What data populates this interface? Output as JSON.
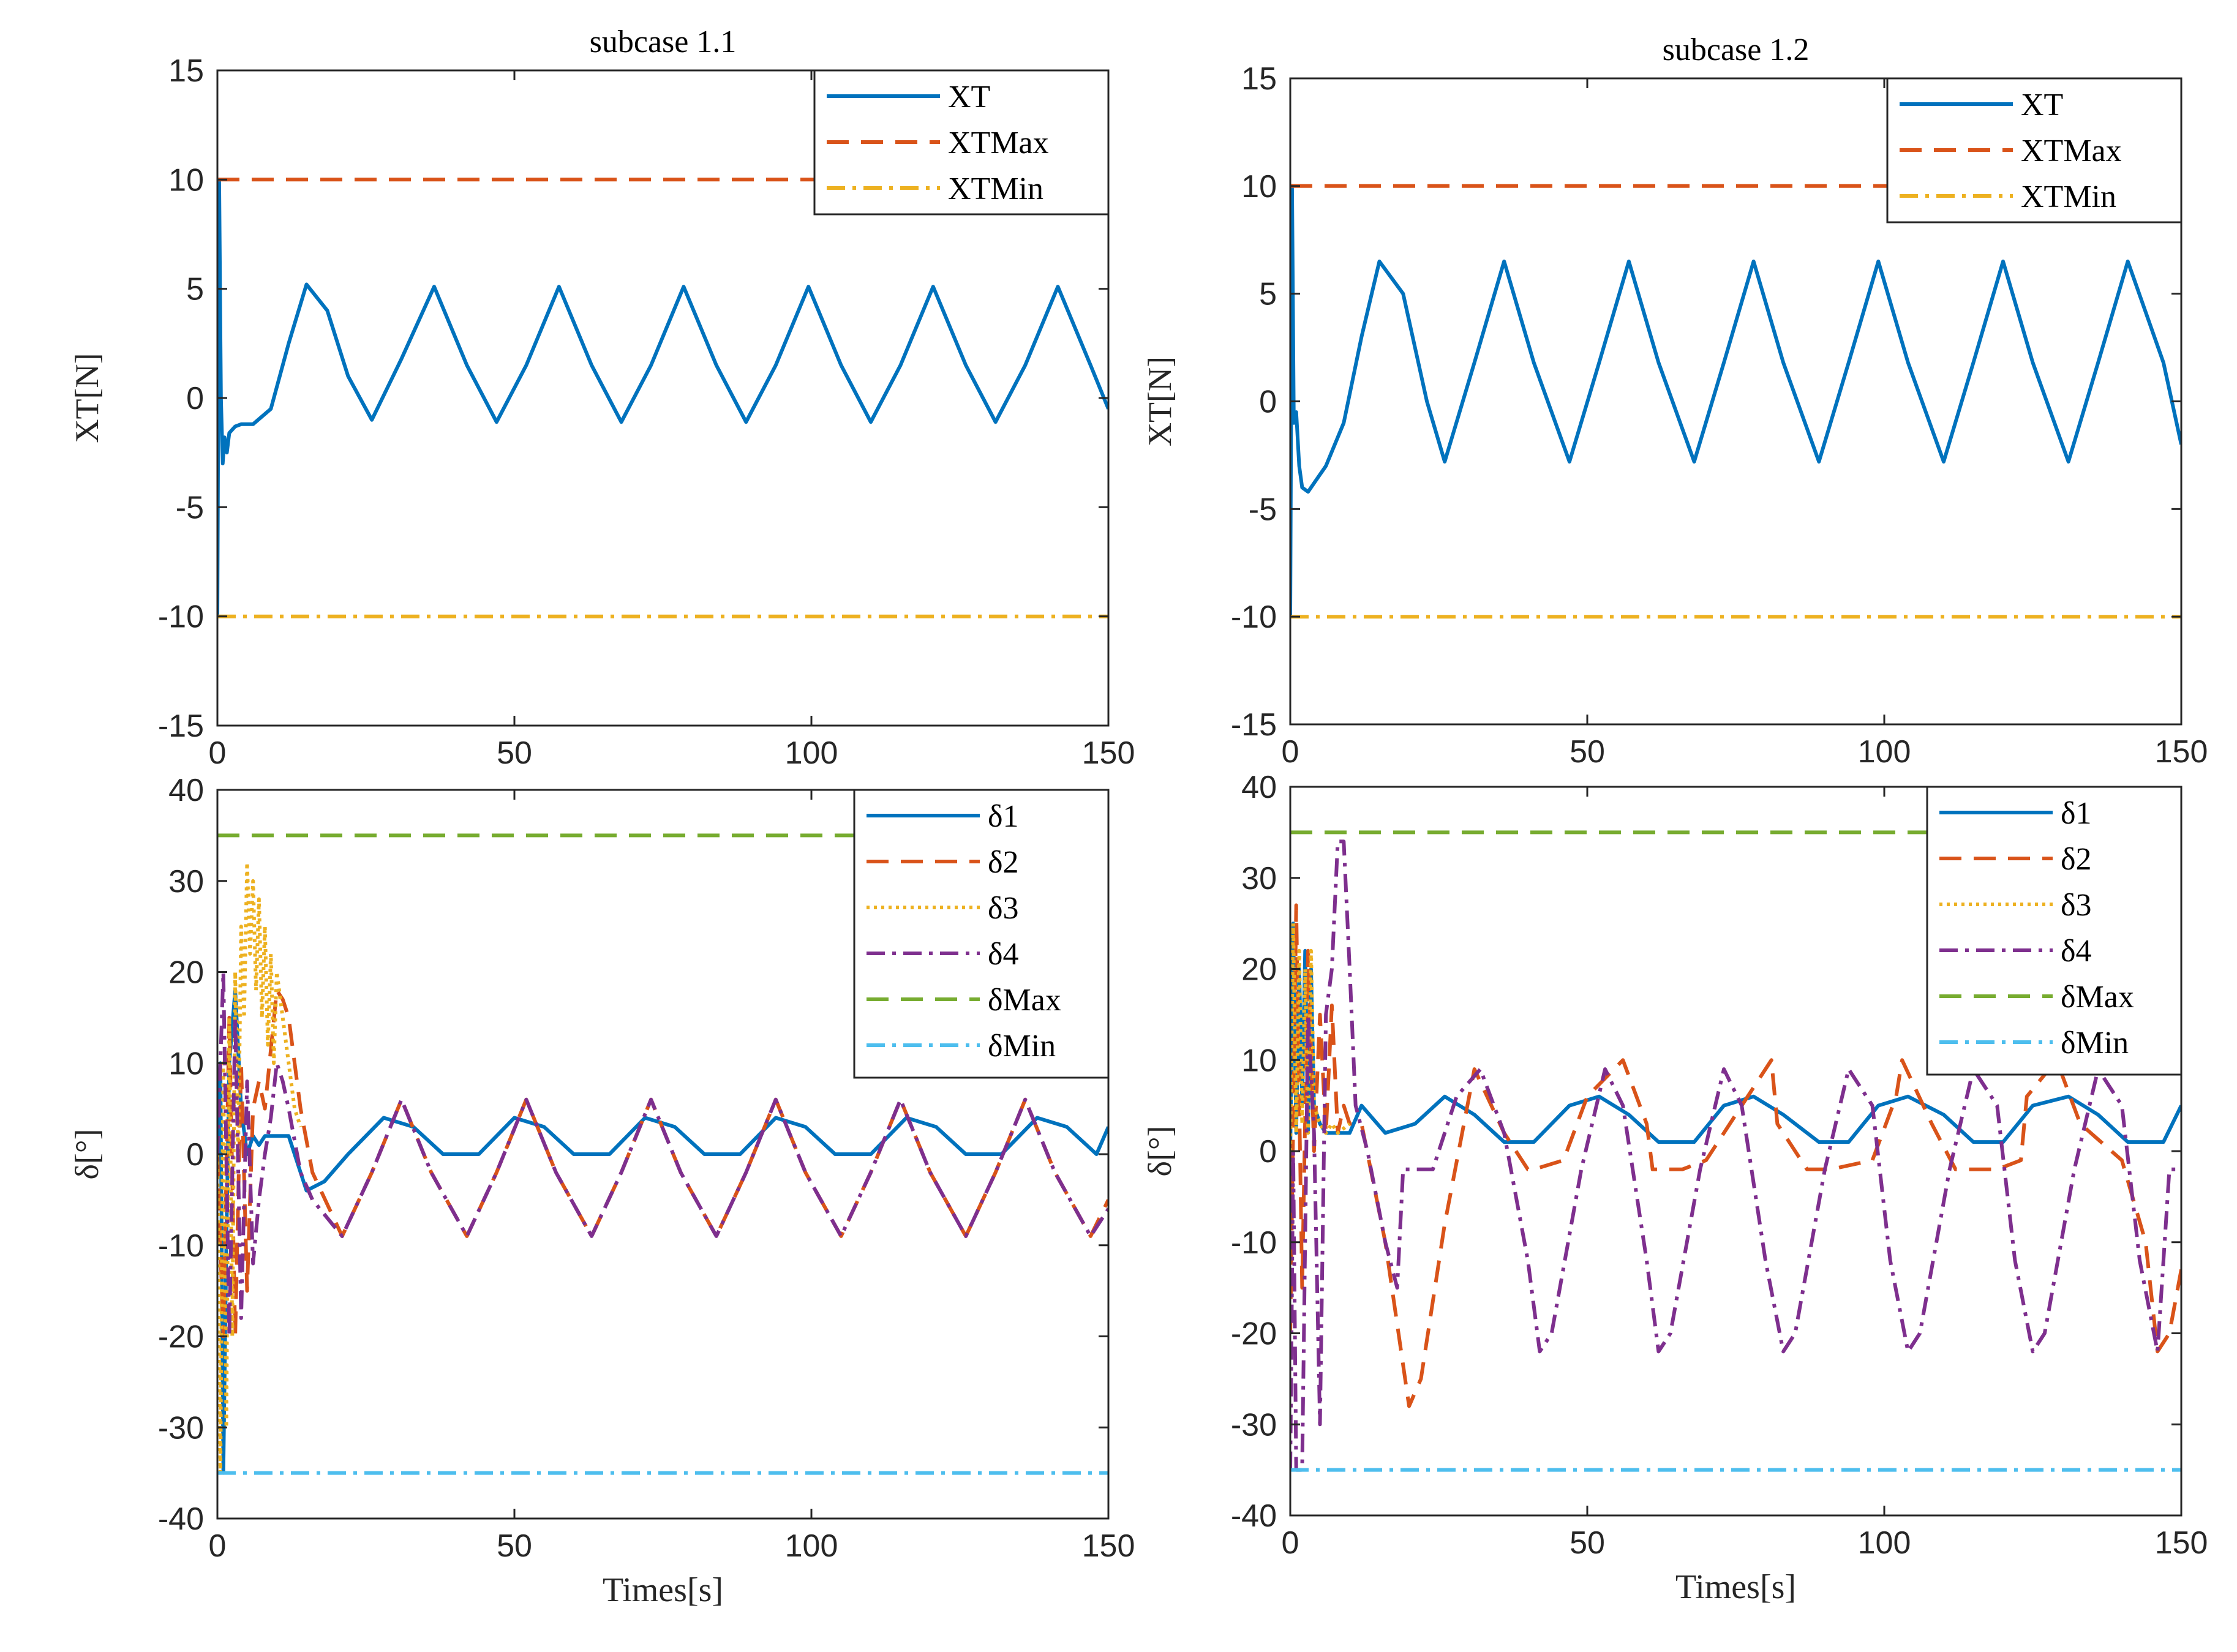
{
  "chart_data": [
    {
      "type": "line",
      "title": "subcase 1.1",
      "xlabel": "",
      "ylabel": "XT[N]",
      "xlim": [
        0,
        150
      ],
      "ylim": [
        -15,
        15
      ],
      "xticks": [
        "0",
        "50",
        "100",
        "150"
      ],
      "yticks": [
        "15",
        "10",
        "5",
        "0",
        "-5",
        "-10",
        "-15"
      ],
      "legend_position": "top-right",
      "series": [
        {
          "name": "XT",
          "color": "#0072BD",
          "style": "solid",
          "x": [
            0,
            0.3,
            0.6,
            0.9,
            1.2,
            1.6,
            2,
            3,
            4,
            6,
            9,
            12,
            15,
            18.5,
            22,
            26,
            31,
            36.5,
            42,
            47,
            52,
            57.5,
            63,
            68,
            73,
            78.5,
            84,
            89,
            94,
            99.5,
            105,
            110,
            115,
            120.5,
            126,
            131,
            136,
            141.5,
            147,
            150
          ],
          "values": [
            -10,
            10,
            0,
            -3,
            -1.8,
            -2.5,
            -1.6,
            -1.3,
            -1.2,
            -1.2,
            -0.5,
            2.5,
            5.2,
            4,
            1,
            -1,
            1.8,
            5.1,
            1.5,
            -1.1,
            1.5,
            5.1,
            1.5,
            -1.1,
            1.5,
            5.1,
            1.5,
            -1.1,
            1.5,
            5.1,
            1.5,
            -1.1,
            1.5,
            5.1,
            1.5,
            -1.1,
            1.5,
            5.1,
            1.5,
            -0.5
          ]
        },
        {
          "name": "XTMax",
          "color": "#D95319",
          "style": "dashed",
          "x": [
            0,
            150
          ],
          "values": [
            10,
            10
          ]
        },
        {
          "name": "XTMin",
          "color": "#EDB120",
          "style": "dashdot",
          "x": [
            0,
            150
          ],
          "values": [
            -10,
            -10
          ]
        }
      ]
    },
    {
      "type": "line",
      "title": "subcase 1.2",
      "xlabel": "",
      "ylabel": "XT[N]",
      "xlim": [
        0,
        150
      ],
      "ylim": [
        -15,
        15
      ],
      "xticks": [
        "0",
        "50",
        "100",
        "150"
      ],
      "yticks": [
        "15",
        "10",
        "5",
        "0",
        "-5",
        "-10",
        "-15"
      ],
      "legend_position": "top-right",
      "series": [
        {
          "name": "XT",
          "color": "#0072BD",
          "style": "solid",
          "x": [
            0,
            0.3,
            0.6,
            1.0,
            1.5,
            2,
            3,
            4,
            6,
            9,
            12,
            15,
            19,
            23,
            26,
            31,
            36,
            41,
            47,
            52,
            57,
            62,
            68,
            73,
            78,
            83,
            89,
            94,
            99,
            104,
            110,
            115,
            120,
            125,
            131,
            136,
            141,
            147,
            150
          ],
          "values": [
            -10,
            10,
            -1,
            -0.5,
            -3,
            -4,
            -4.2,
            -3.8,
            -3,
            -1,
            3,
            6.5,
            5,
            0,
            -2.8,
            1.8,
            6.5,
            1.8,
            -2.8,
            1.8,
            6.5,
            1.8,
            -2.8,
            1.8,
            6.5,
            1.8,
            -2.8,
            1.8,
            6.5,
            1.8,
            -2.8,
            1.8,
            6.5,
            1.8,
            -2.8,
            1.8,
            6.5,
            1.8,
            -2
          ]
        },
        {
          "name": "XTMax",
          "color": "#D95319",
          "style": "dashed",
          "x": [
            0,
            150
          ],
          "values": [
            10,
            10
          ]
        },
        {
          "name": "XTMin",
          "color": "#EDB120",
          "style": "dashdot",
          "x": [
            0,
            150
          ],
          "values": [
            -10,
            -10
          ]
        }
      ]
    },
    {
      "type": "line",
      "title": "",
      "xlabel": "Times[s]",
      "ylabel": "δ[°]",
      "xlim": [
        0,
        150
      ],
      "ylim": [
        -40,
        40
      ],
      "xticks": [
        "0",
        "50",
        "100",
        "150"
      ],
      "yticks": [
        "40",
        "30",
        "20",
        "10",
        "0",
        "-10",
        "-20",
        "-30",
        "-40"
      ],
      "legend_position": "top-right",
      "series": [
        {
          "name": "δ1",
          "color": "#0072BD",
          "style": "solid",
          "x": [
            0,
            0.5,
            1,
            1.5,
            2,
            3,
            4,
            5,
            6,
            7,
            8,
            10,
            12,
            15,
            18,
            22,
            28,
            33,
            38,
            44,
            50,
            55,
            60,
            66,
            72,
            77,
            82,
            88,
            94,
            99,
            104,
            110,
            116,
            121,
            126,
            132,
            138,
            143,
            148,
            150
          ],
          "values": [
            0,
            10,
            -35,
            -10,
            10,
            18,
            5,
            0,
            2,
            1,
            2,
            2,
            2,
            -4,
            -3,
            0,
            4,
            3,
            0,
            0,
            4,
            3,
            0,
            0,
            4,
            3,
            0,
            0,
            4,
            3,
            0,
            0,
            4,
            3,
            0,
            0,
            4,
            3,
            0,
            3
          ]
        },
        {
          "name": "δ2",
          "color": "#D95319",
          "style": "dashed",
          "x": [
            0,
            1,
            2,
            3,
            4,
            5,
            6,
            7,
            8,
            10,
            11,
            12,
            14,
            16,
            21,
            26,
            31,
            36,
            42,
            47,
            52,
            57,
            63,
            68,
            73,
            78,
            84,
            89,
            94,
            99,
            105,
            110,
            115,
            120,
            126,
            131,
            136,
            141,
            147,
            150
          ],
          "values": [
            0,
            -20,
            15,
            -20,
            10,
            -15,
            5,
            8,
            5,
            18,
            17,
            15,
            5,
            -2,
            -9,
            -2,
            6,
            -2,
            -9,
            -2,
            6,
            -2,
            -9,
            -2,
            6,
            -2,
            -9,
            -2,
            6,
            -2,
            -9,
            -2,
            6,
            -2,
            -9,
            -2,
            6,
            -2,
            -9,
            -5
          ]
        },
        {
          "name": "δ3",
          "color": "#EDB120",
          "style": "dotted",
          "x": [
            0,
            0.5,
            1,
            1.5,
            2,
            2.5,
            3,
            3.5,
            4,
            4.5,
            5,
            5.5,
            6,
            6.5,
            7,
            7.5,
            8,
            8.5,
            9,
            9.5,
            10,
            11,
            12,
            13,
            14
          ],
          "values": [
            0,
            -35,
            10,
            -30,
            15,
            -20,
            20,
            0,
            25,
            15,
            32,
            22,
            30,
            18,
            28,
            15,
            25,
            12,
            22,
            10,
            20,
            15,
            10,
            5,
            3
          ]
        },
        {
          "name": "δ4",
          "color": "#7E2F8E",
          "style": "dashdot",
          "x": [
            0,
            1,
            2,
            3,
            4,
            5,
            6,
            7,
            8,
            9,
            10,
            11,
            12,
            14,
            16,
            21,
            26,
            31,
            36,
            42,
            47,
            52,
            57,
            63,
            68,
            73,
            78,
            84,
            89,
            94,
            99,
            105,
            110,
            115,
            120,
            126,
            131,
            136,
            141,
            147,
            150
          ],
          "values": [
            0,
            20,
            -20,
            15,
            -18,
            8,
            -12,
            -5,
            0,
            4,
            10,
            8,
            5,
            -2,
            -5,
            -9,
            -2,
            6,
            -2,
            -9,
            -2,
            6,
            -2,
            -9,
            -2,
            6,
            -2,
            -9,
            -2,
            6,
            -2,
            -9,
            -2,
            6,
            -2,
            -9,
            -2,
            6,
            -2,
            -9,
            -6
          ]
        },
        {
          "name": "δMax",
          "color": "#77AC30",
          "style": "dashed",
          "x": [
            0,
            150
          ],
          "values": [
            35,
            35
          ]
        },
        {
          "name": "δMin",
          "color": "#4DBEEE",
          "style": "dashdot",
          "x": [
            0,
            150
          ],
          "values": [
            -35,
            -35
          ]
        }
      ]
    },
    {
      "type": "line",
      "title": "",
      "xlabel": "Times[s]",
      "ylabel": "δ[°]",
      "xlim": [
        0,
        150
      ],
      "ylim": [
        -40,
        40
      ],
      "xticks": [
        "0",
        "50",
        "100",
        "150"
      ],
      "yticks": [
        "40",
        "30",
        "20",
        "10",
        "0",
        "-10",
        "-20",
        "-30",
        "-40"
      ],
      "legend_position": "top-right",
      "series": [
        {
          "name": "δ1",
          "color": "#0072BD",
          "style": "solid",
          "x": [
            0,
            0.5,
            1,
            1.5,
            2,
            2.5,
            3,
            3.5,
            4,
            5,
            6,
            8,
            10,
            12,
            16,
            21,
            26,
            31,
            36,
            41,
            47,
            52,
            57,
            62,
            68,
            73,
            78,
            83,
            89,
            94,
            99,
            104,
            110,
            115,
            120,
            125,
            131,
            136,
            141,
            147,
            150
          ],
          "values": [
            0,
            25,
            2,
            20,
            5,
            22,
            2,
            20,
            5,
            3,
            2,
            2,
            2,
            5,
            2,
            3,
            6,
            4,
            1,
            1,
            5,
            6,
            4,
            1,
            1,
            5,
            6,
            4,
            1,
            1,
            5,
            6,
            4,
            1,
            1,
            5,
            6,
            4,
            1,
            1,
            5
          ]
        },
        {
          "name": "δ2",
          "color": "#D95319",
          "style": "dashed",
          "x": [
            0,
            1,
            2,
            3,
            4,
            5,
            6,
            7,
            8,
            9,
            10,
            12,
            16,
            20,
            22,
            26,
            31,
            36,
            40,
            41,
            46,
            50,
            56,
            60,
            61,
            66,
            70,
            77,
            81,
            82,
            87,
            91,
            98,
            102,
            103,
            108,
            112,
            119,
            123,
            124,
            129,
            133,
            140,
            144,
            146,
            148,
            150
          ],
          "values": [
            -20,
            27,
            -15,
            22,
            0,
            15,
            2,
            16,
            2,
            5,
            3,
            3,
            -10,
            -28,
            -25,
            -8,
            9,
            2,
            -2,
            -2,
            -1,
            6,
            10,
            3,
            -2,
            -2,
            -1,
            6,
            10,
            3,
            -2,
            -2,
            -1,
            6,
            10,
            3,
            -2,
            -2,
            -1,
            6,
            10,
            3,
            -1,
            -10,
            -22,
            -20,
            -13
          ]
        },
        {
          "name": "δ3",
          "color": "#EDB120",
          "style": "dotted",
          "x": [
            0,
            0.5,
            1,
            1.5,
            2,
            2.5,
            3,
            3.5,
            4,
            5,
            6,
            7,
            8,
            10
          ],
          "values": [
            0,
            25,
            2,
            22,
            3,
            20,
            2,
            22,
            5,
            3,
            2,
            3,
            2,
            3
          ]
        },
        {
          "name": "δ4",
          "color": "#7E2F8E",
          "style": "dashdot",
          "x": [
            0,
            0.5,
            1,
            2,
            3,
            4,
            5,
            6,
            7,
            8,
            9,
            10,
            11,
            13,
            16,
            18,
            19,
            24,
            28,
            32,
            36,
            40,
            42,
            44,
            49,
            53,
            56,
            60,
            62,
            64,
            69,
            73,
            76,
            80,
            83,
            85,
            90,
            94,
            98,
            101,
            104,
            106,
            111,
            115,
            119,
            122,
            125,
            127,
            132,
            136,
            140,
            143,
            146,
            148,
            150
          ],
          "values": [
            -35,
            0,
            -35,
            -35,
            15,
            2,
            -30,
            15,
            20,
            34,
            34,
            20,
            5,
            0,
            -10,
            -15,
            -2,
            -2,
            6,
            9,
            2,
            -12,
            -22,
            -20,
            -2,
            9,
            5,
            -12,
            -22,
            -20,
            -2,
            9,
            5,
            -12,
            -22,
            -20,
            -2,
            9,
            5,
            -12,
            -22,
            -20,
            -2,
            9,
            5,
            -12,
            -22,
            -20,
            -2,
            9,
            5,
            -12,
            -22,
            -2,
            -2
          ]
        },
        {
          "name": "δMax",
          "color": "#77AC30",
          "style": "dashed",
          "x": [
            0,
            150
          ],
          "values": [
            35,
            35
          ]
        },
        {
          "name": "δMin",
          "color": "#4DBEEE",
          "style": "dashdot",
          "x": [
            0,
            150
          ],
          "values": [
            -35,
            -35
          ]
        }
      ]
    }
  ]
}
